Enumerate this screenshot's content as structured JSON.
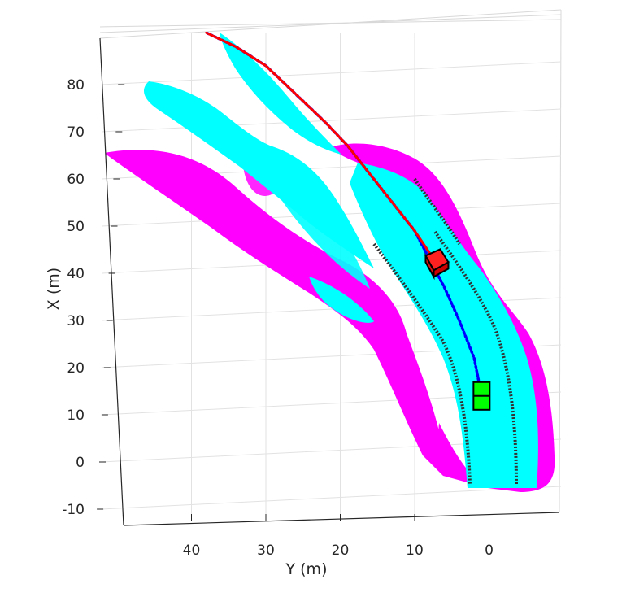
{
  "chart_data": {
    "type": "scatter",
    "title": "",
    "xlabel": "Y (m)",
    "ylabel": "X (m)",
    "x_axis_reversed": true,
    "xlim": [
      -9,
      49
    ],
    "ylim": [
      -12,
      92
    ],
    "xticks": [
      "40",
      "30",
      "20",
      "10",
      "0"
    ],
    "yticks": [
      "80",
      "70",
      "60",
      "50",
      "40",
      "30",
      "20",
      "10",
      "0",
      "-10"
    ],
    "grid": true,
    "view": "3-D perspective, top-down",
    "colors": {
      "road_points": "#00ffff",
      "off_road_points": "#ff00ff",
      "lane_markings": "#333333",
      "ego_vehicle": "#00ff00",
      "target_vehicle": "#ff0000",
      "trajectory_estimate": "#0000ff",
      "trajectory_reference": "#ff0000"
    },
    "series": [
      {
        "role": "trajectory_estimate",
        "type": "line",
        "points": [
          [
            1,
            14
          ],
          [
            2,
            22
          ],
          [
            4,
            30
          ],
          [
            6,
            37
          ],
          [
            8,
            43
          ],
          [
            10,
            49
          ],
          [
            13,
            55
          ],
          [
            16,
            61
          ],
          [
            19,
            67
          ],
          [
            22,
            72
          ],
          [
            26,
            78
          ],
          [
            30,
            84
          ],
          [
            34,
            88
          ],
          [
            38,
            91
          ]
        ]
      },
      {
        "role": "trajectory_reference",
        "type": "line",
        "points": [
          [
            7,
            42
          ],
          [
            10,
            49
          ],
          [
            13,
            55
          ],
          [
            16,
            61
          ],
          [
            19,
            67
          ],
          [
            22,
            72
          ],
          [
            26,
            78
          ],
          [
            30,
            84
          ],
          [
            34,
            88
          ],
          [
            38,
            91
          ]
        ]
      },
      {
        "role": "ego_vehicle",
        "type": "box",
        "center": [
          1,
          14
        ]
      },
      {
        "role": "target_vehicle",
        "type": "box",
        "center": [
          7,
          42
        ]
      }
    ]
  }
}
